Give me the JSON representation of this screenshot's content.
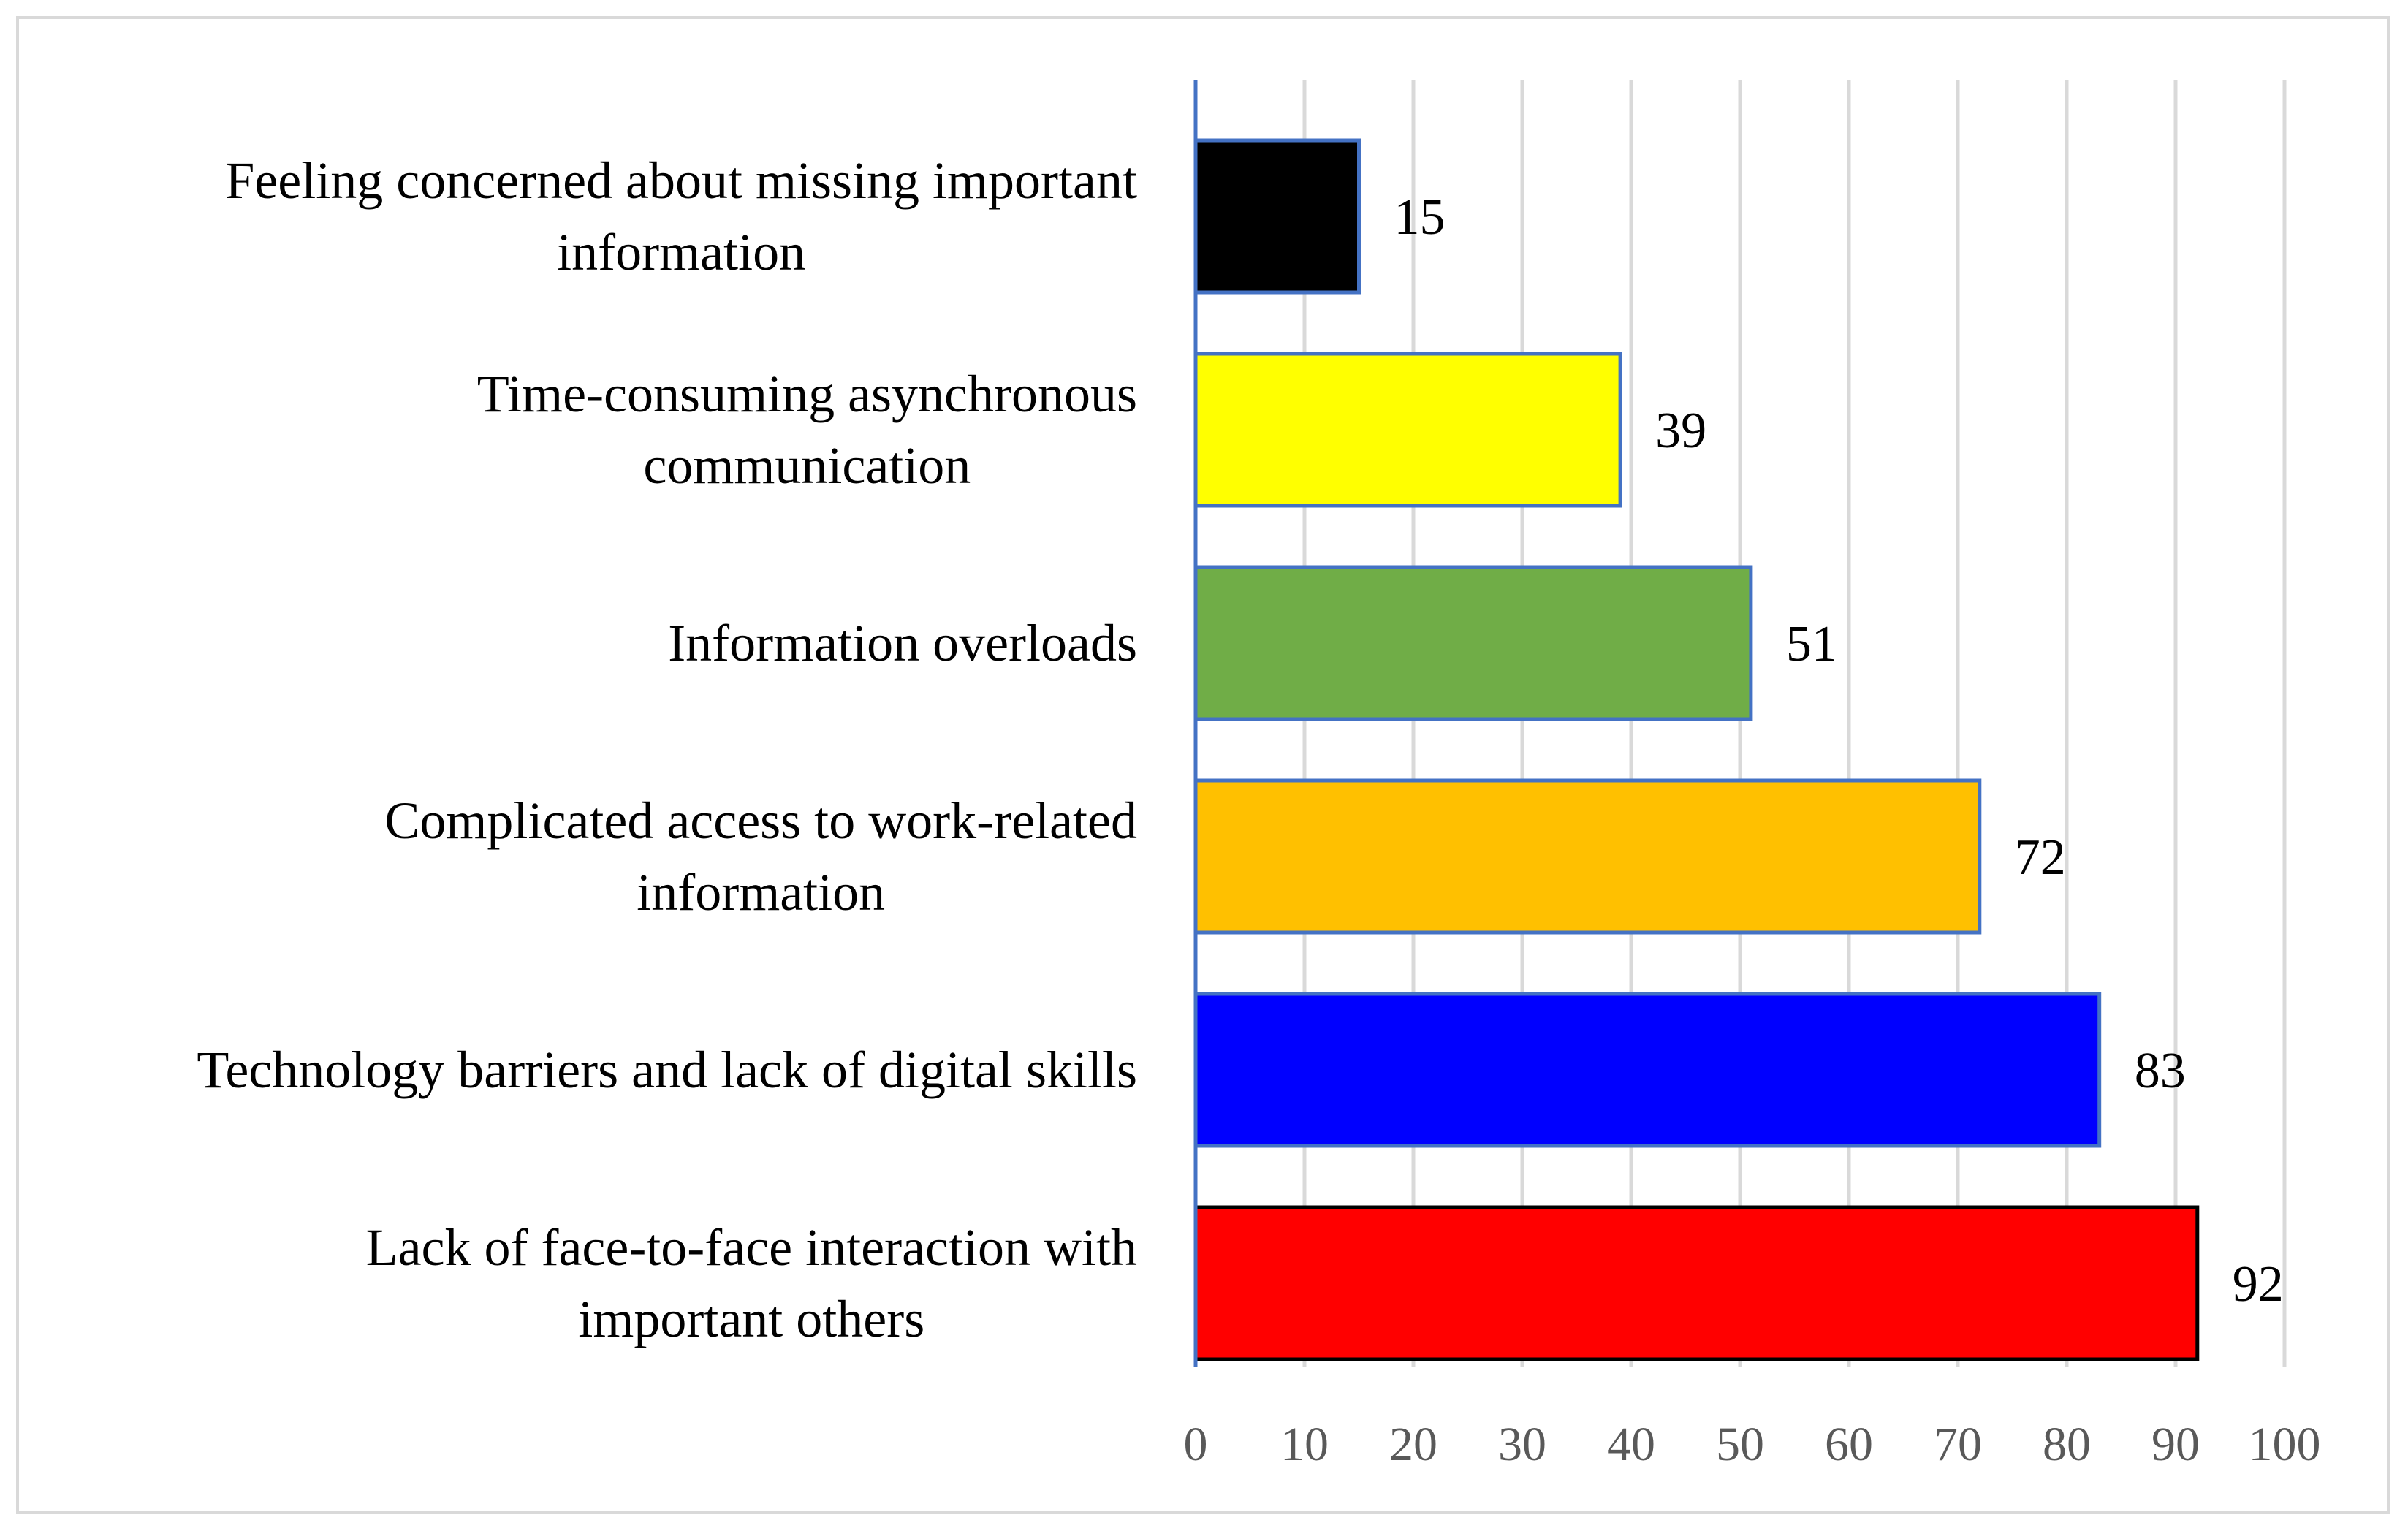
{
  "chart_data": {
    "type": "bar",
    "orientation": "horizontal",
    "title": "",
    "xlabel": "",
    "ylabel": "",
    "xlim": [
      0,
      100
    ],
    "xticks": [
      0,
      10,
      20,
      30,
      40,
      50,
      60,
      70,
      80,
      90,
      100
    ],
    "grid": true,
    "legend": "none",
    "categories": [
      [
        "Feeling concerned about missing important",
        "information"
      ],
      [
        "Time-consuming asynchronous",
        "communication"
      ],
      [
        "Information overloads"
      ],
      [
        "Complicated access to work-related",
        "information"
      ],
      [
        "Technology barriers and lack of digital skills"
      ],
      [
        "Lack of face-to-face interaction with",
        "important others"
      ]
    ],
    "values": [
      15,
      39,
      51,
      72,
      83,
      92
    ],
    "colors": [
      "#000000",
      "#ffff00",
      "#70ad47",
      "#ffc000",
      "#0000ff",
      "#ff0000"
    ],
    "bar_border_colors": [
      "#4472c4",
      "#4472c4",
      "#4472c4",
      "#4472c4",
      "#4472c4",
      "#000000"
    ]
  }
}
